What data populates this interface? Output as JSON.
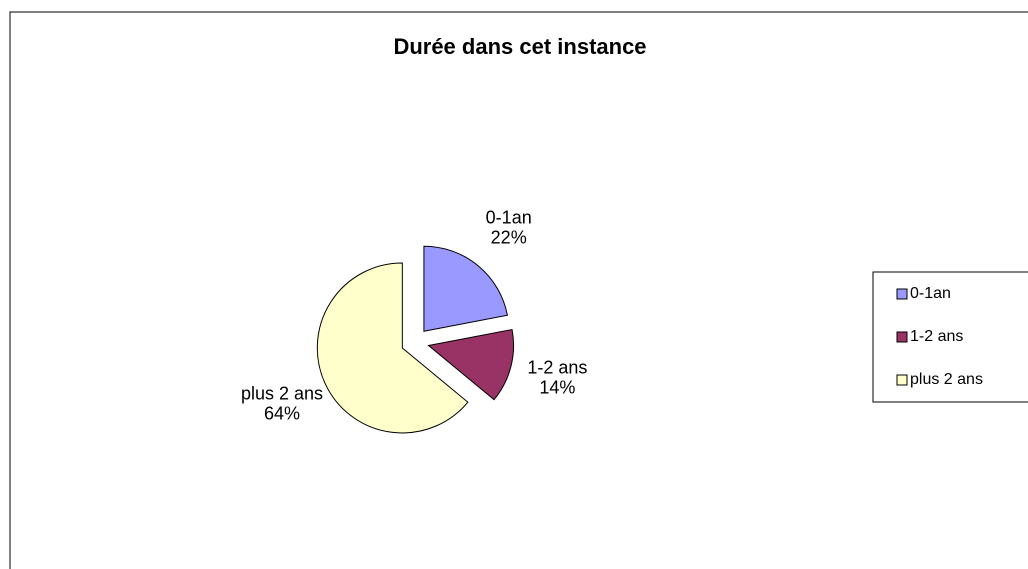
{
  "chart_data": {
    "type": "pie",
    "title": "Durée dans cet instance",
    "categories": [
      "0-1an",
      "1-2 ans",
      "plus 2 ans"
    ],
    "values": [
      22,
      14,
      64
    ],
    "value_labels": [
      "22%",
      "14%",
      "64%"
    ],
    "colors": [
      "#9999ff",
      "#993366",
      "#ffffcc"
    ],
    "legend": "right"
  }
}
